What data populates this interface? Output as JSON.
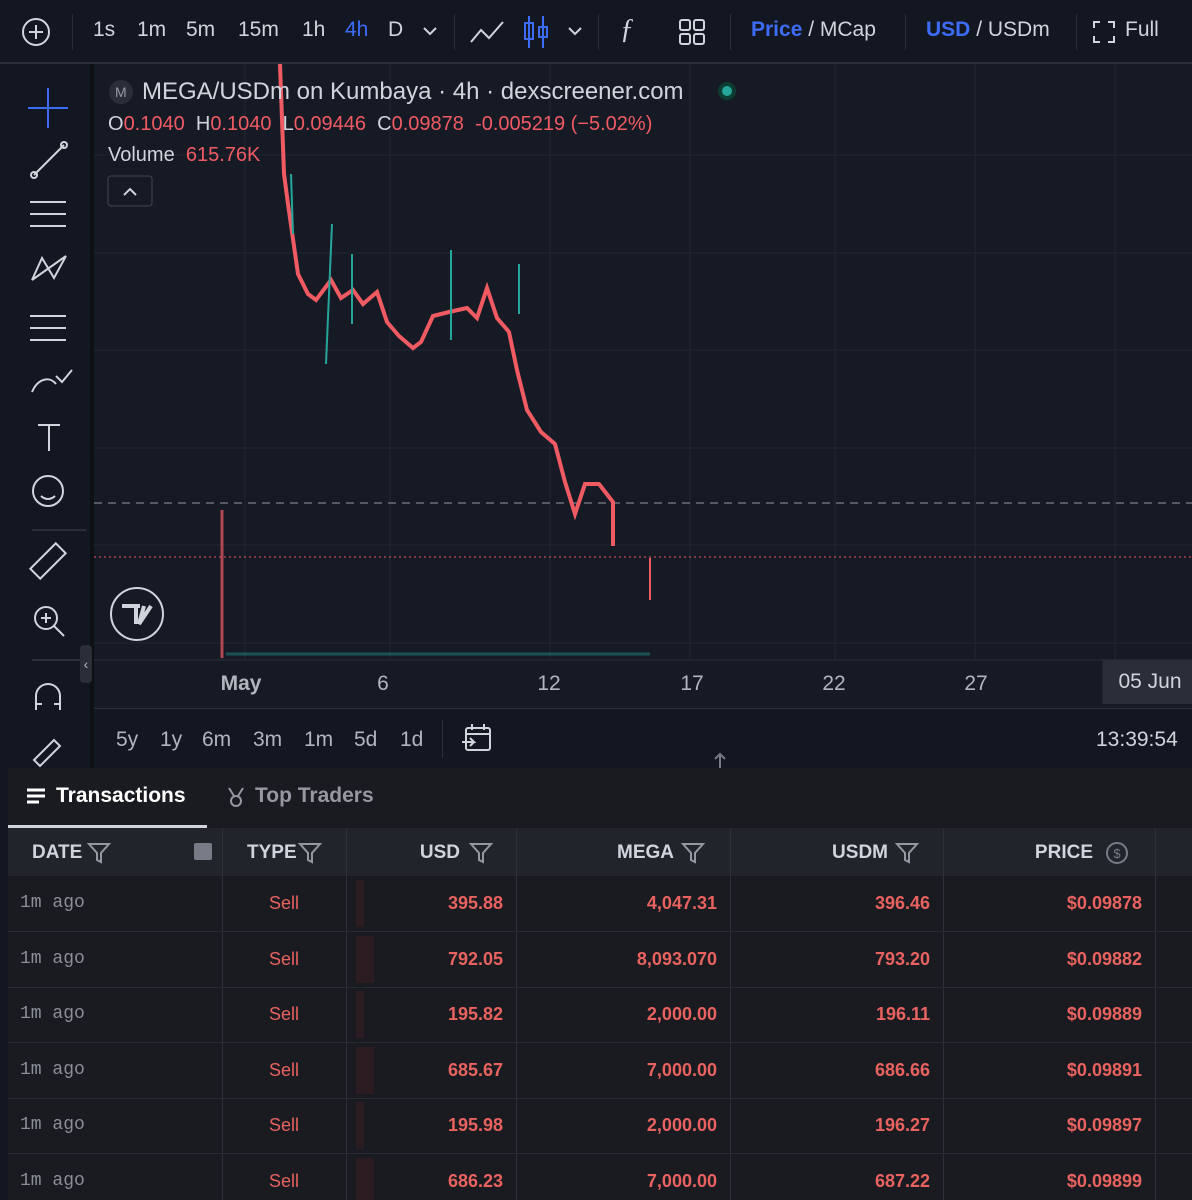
{
  "toolbar": {
    "intervals": [
      "1s",
      "1m",
      "5m",
      "15m",
      "1h",
      "4h",
      "D"
    ],
    "active_interval": "4h",
    "price": "Price",
    "mcap": "/ MCap",
    "usd": "USD",
    "usdm": "/ USDm",
    "full": "Full"
  },
  "legend": {
    "logo": "M",
    "title": "MEGA/USDm on Kumbaya · 4h · dexscreener.com",
    "open_label": "O",
    "open": "0.1040",
    "high_label": "H",
    "high": "0.1040",
    "low_label": "L",
    "low": "0.09446",
    "close_label": "C",
    "close": "0.09878",
    "change": "-0.005219 (−5.02%)",
    "volume_label": "Volume",
    "volume": "615.76K"
  },
  "x_axis": {
    "labels": [
      "May",
      "6",
      "12",
      "17",
      "22",
      "27",
      "05 Jun"
    ]
  },
  "ranges": {
    "items": [
      "5y",
      "1y",
      "6m",
      "3m",
      "1m",
      "5d",
      "1d"
    ],
    "time": "13:39:54"
  },
  "tabs": [
    "Transactions",
    "Top Traders"
  ],
  "table": {
    "headers": [
      "DATE",
      "TYPE",
      "USD",
      "MEGA",
      "USDM",
      "PRICE"
    ],
    "rows": [
      [
        "1m ago",
        "Sell",
        "395.88",
        "4,047.31",
        "396.46",
        "$0.09878"
      ],
      [
        "1m ago",
        "Sell",
        "792.05",
        "8,093.070",
        "793.20",
        "$0.09882"
      ],
      [
        "1m ago",
        "Sell",
        "195.82",
        "2,000.00",
        "196.11",
        "$0.09889"
      ],
      [
        "1m ago",
        "Sell",
        "685.67",
        "7,000.00",
        "686.66",
        "$0.09891"
      ],
      [
        "1m ago",
        "Sell",
        "195.98",
        "2,000.00",
        "196.27",
        "$0.09897"
      ],
      [
        "1m ago",
        "Sell",
        "686.23",
        "7,000.00",
        "687.22",
        "$0.09899"
      ]
    ]
  }
}
